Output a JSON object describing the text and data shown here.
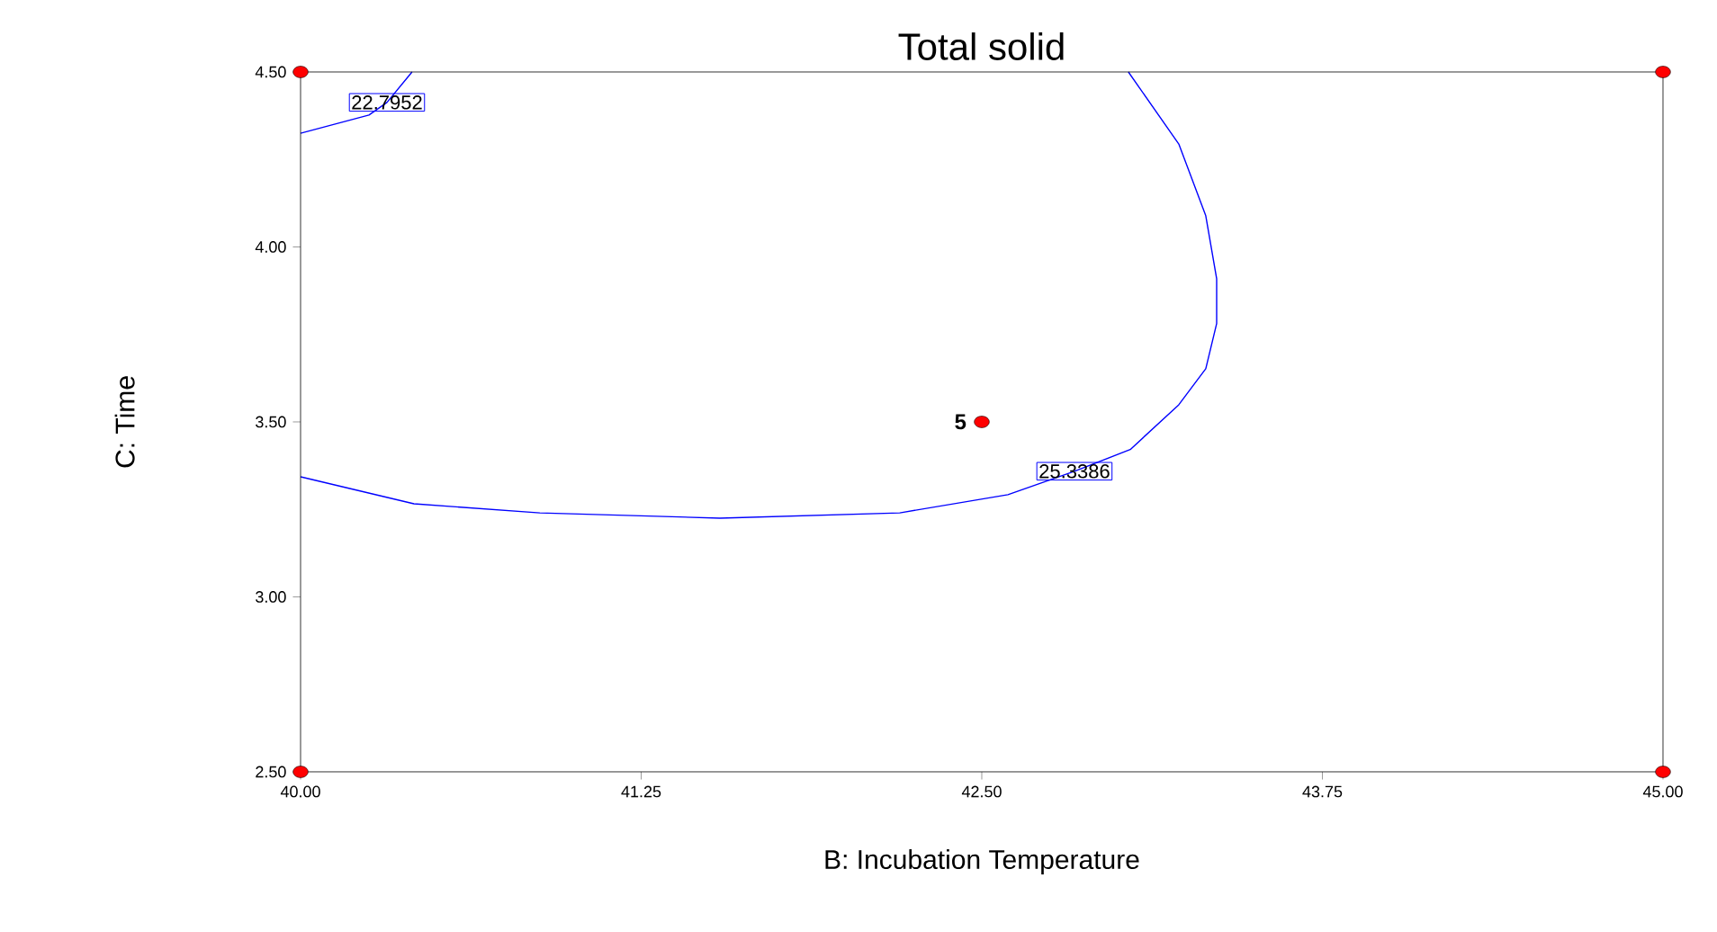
{
  "chart_data": {
    "type": "line",
    "title": "Total solid",
    "xlabel": "B: Incubation Temperature",
    "ylabel": "C: Time",
    "xlim": [
      40,
      45
    ],
    "ylim": [
      2.5,
      4.5
    ],
    "xticks": [
      {
        "value": 40,
        "label": "40.00"
      },
      {
        "value": 41.25,
        "label": "41.25"
      },
      {
        "value": 42.5,
        "label": "42.50"
      },
      {
        "value": 43.75,
        "label": "43.75"
      },
      {
        "value": 45,
        "label": "45.00"
      }
    ],
    "yticks": [
      {
        "value": 2.5,
        "label": "2.50"
      },
      {
        "value": 3,
        "label": "3.00"
      },
      {
        "value": 3.5,
        "label": "3.50"
      },
      {
        "value": 4,
        "label": "4.00"
      },
      {
        "value": 4.5,
        "label": "4.50"
      }
    ],
    "series": [
      {
        "color": "#0000ff",
        "marker": "none",
        "x": [
          40,
          40.251,
          40.317,
          40.409
        ],
        "values": [
          4.325,
          4.377,
          4.413,
          4.5
        ]
      },
      {
        "color": "#0000ff",
        "marker": "none",
        "x": [
          43.038,
          43.223,
          43.322,
          43.362,
          43.362,
          43.322,
          43.223,
          43.045,
          42.84,
          42.596,
          42.199,
          41.539,
          40.878,
          40.416,
          40
        ],
        "values": [
          4.5,
          4.294,
          4.089,
          3.909,
          3.781,
          3.652,
          3.549,
          3.421,
          3.359,
          3.292,
          3.24,
          3.225,
          3.24,
          3.266,
          3.343
        ]
      },
      {
        "type": "scatter",
        "color": "#ff0000",
        "marker": "circle",
        "x": [
          40,
          40,
          45,
          45,
          42.5
        ],
        "values": [
          2.5,
          4.5,
          2.5,
          4.5,
          3.5
        ]
      }
    ],
    "annotations": [
      {
        "text": "22.7952",
        "x": 40.317,
        "y": 4.413
      },
      {
        "text": "25.3386",
        "x": 42.84,
        "y": 3.359
      },
      {
        "text": "5",
        "x": 42.5,
        "y": 3.5
      }
    ]
  }
}
